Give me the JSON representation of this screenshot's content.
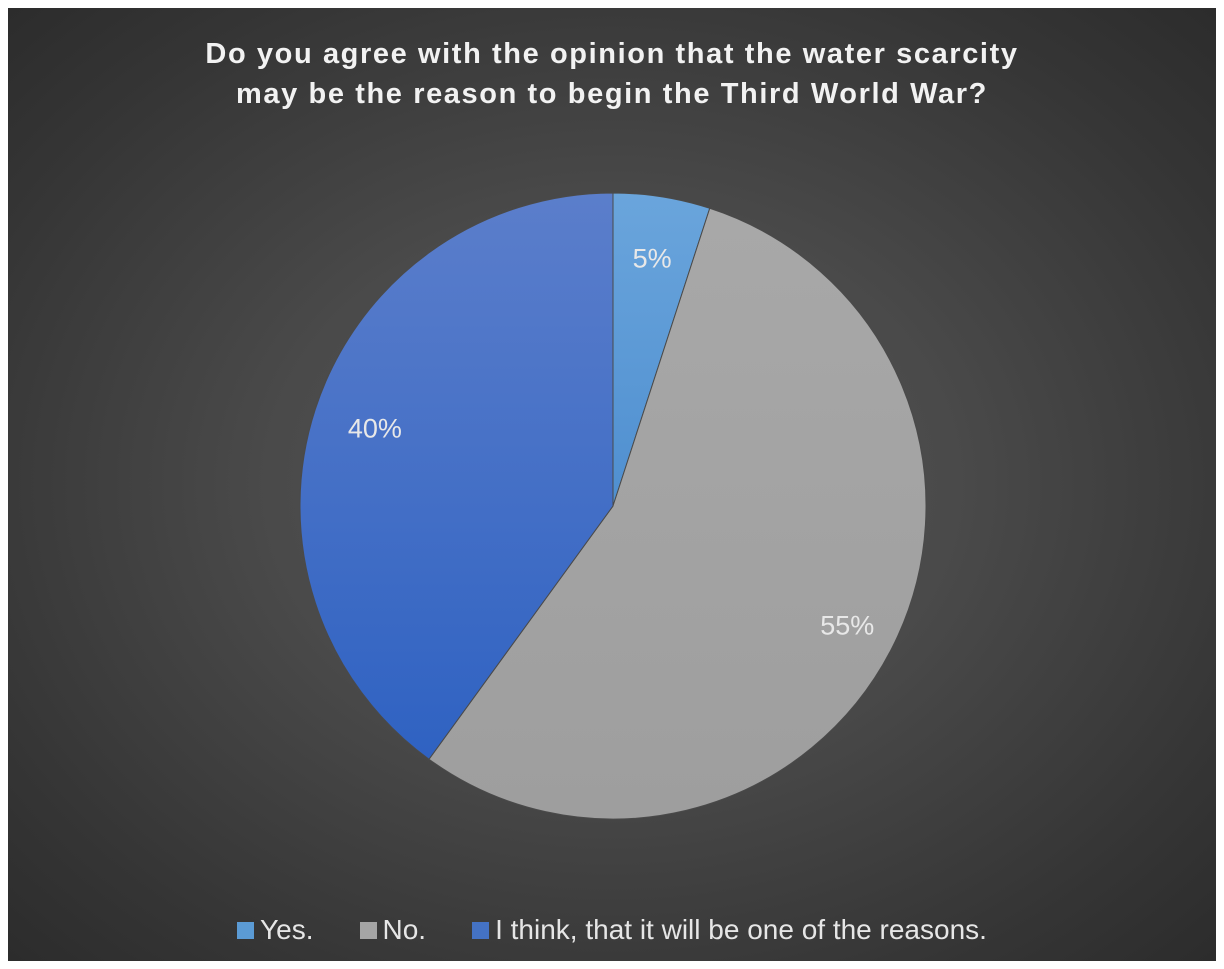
{
  "chart_data": {
    "type": "pie",
    "title_lines": [
      "Do you agree with the opinion that the water scarcity",
      "may be the reason to begin the Third World War?"
    ],
    "categories": [
      "Yes.",
      "No.",
      "I think, that it will be one of the reasons."
    ],
    "values": [
      5,
      55,
      40
    ],
    "labels": [
      "5%",
      "55%",
      "40%"
    ],
    "colors": [
      "#5b9bd5",
      "#a5a5a5",
      "#4472c4"
    ],
    "legend_position": "bottom",
    "background": "#444444"
  }
}
